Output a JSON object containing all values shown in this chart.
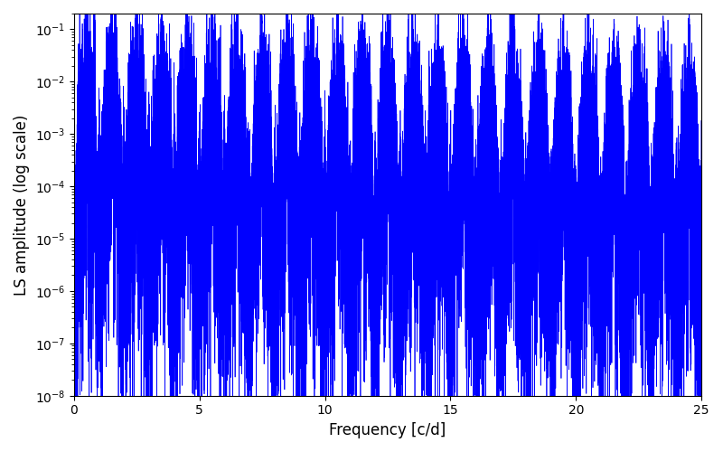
{
  "title": "",
  "xlabel": "Frequency [c/d]",
  "ylabel": "LS amplitude (log scale)",
  "line_color": "#0000ff",
  "line_width": 0.5,
  "xlim": [
    0,
    25
  ],
  "ylim": [
    1e-08,
    0.2
  ],
  "yscale": "log",
  "figsize": [
    8.0,
    5.0
  ],
  "dpi": 100,
  "background_color": "#ffffff",
  "num_points": 80000,
  "seed": 123,
  "peak_amp_0": 0.09,
  "decay_peaks": 0.1,
  "noise_floor_low": 0.0005,
  "noise_floor_high": 0.0001,
  "decay_floor": 0.05
}
